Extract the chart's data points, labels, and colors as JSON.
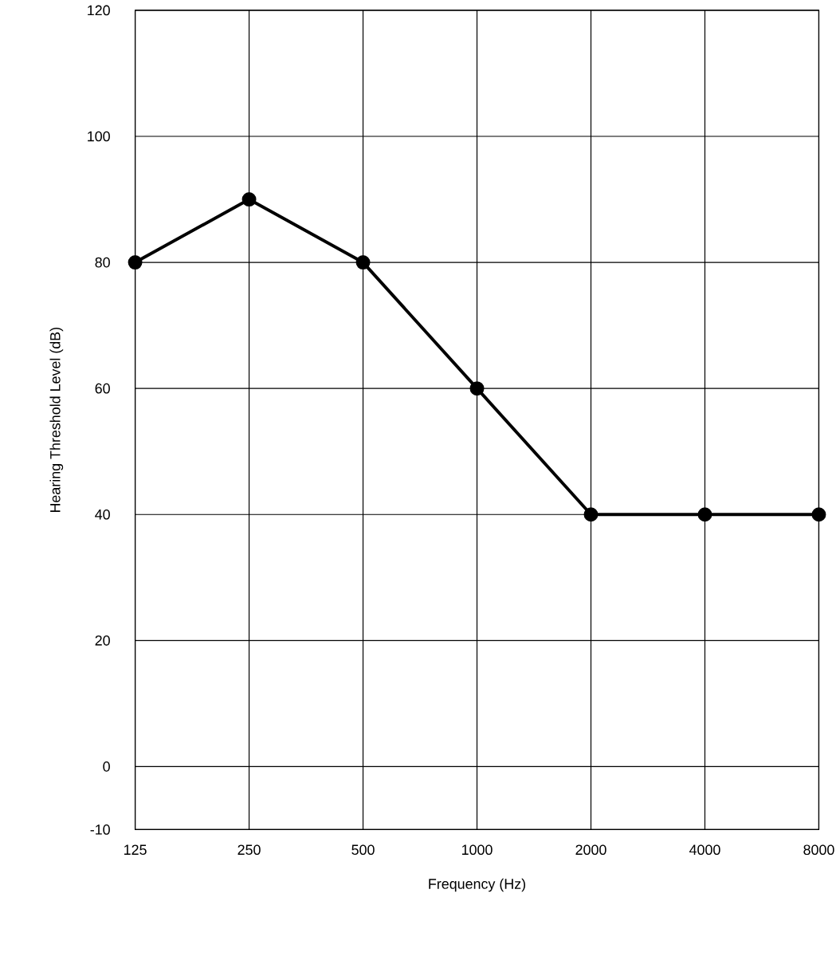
{
  "chart_data": {
    "type": "line",
    "xlabel": "Frequency  (Hz)",
    "ylabel": "Hearing Threshold Level  (dB)",
    "categories": [
      "125",
      "250",
      "500",
      "1000",
      "2000",
      "4000",
      "8000"
    ],
    "values": [
      80,
      90,
      80,
      60,
      40,
      40,
      40
    ],
    "color": "#000000",
    "ylim": [
      -10,
      120
    ],
    "yticks": [
      -10,
      0,
      20,
      40,
      60,
      80,
      100,
      120
    ],
    "grid": true,
    "marker": "circle",
    "line_style": "solid"
  }
}
